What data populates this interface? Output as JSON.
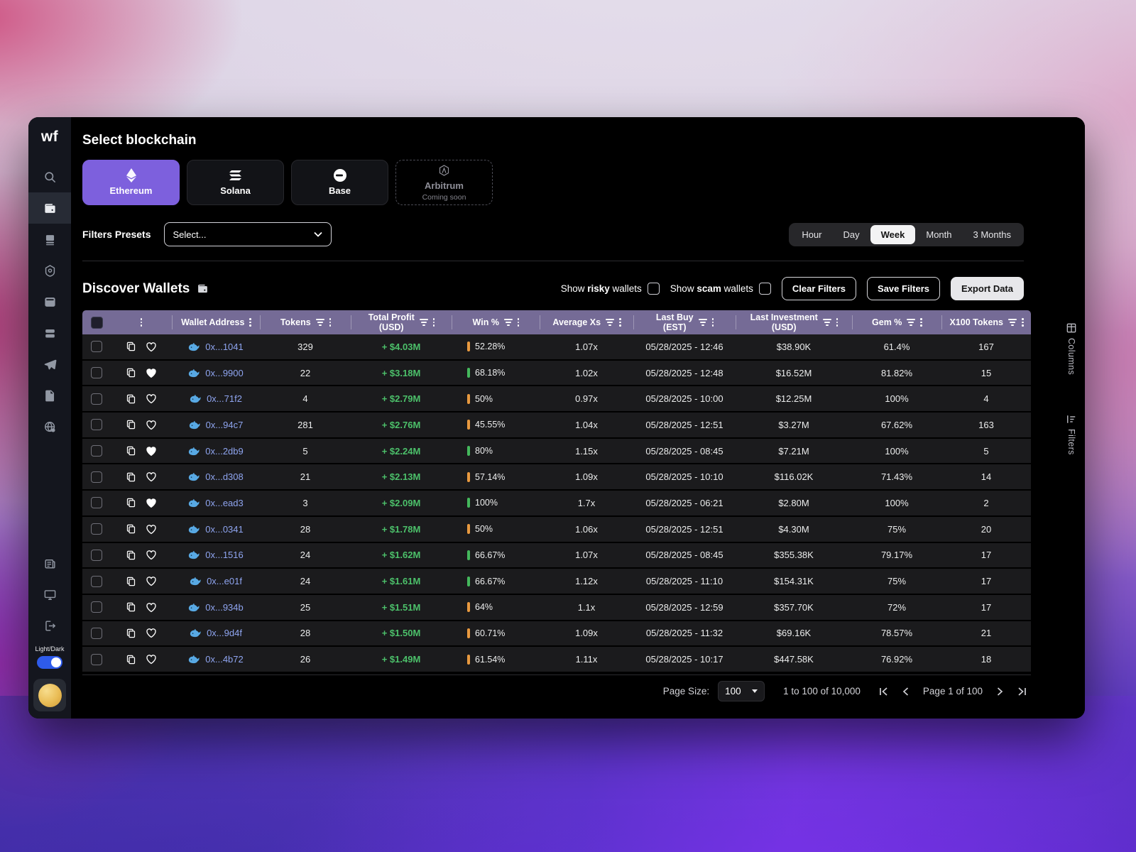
{
  "sidebar": {
    "logo": "wf",
    "theme_toggle_label": "Light/Dark",
    "items_top": [
      "search",
      "wallets",
      "portfolio",
      "security",
      "cards",
      "lists",
      "telegram",
      "documents",
      "web"
    ],
    "items_bottom": [
      "news",
      "desktop",
      "logout"
    ]
  },
  "blockchain": {
    "title": "Select blockchain",
    "options": [
      {
        "label": "Ethereum",
        "selected": true
      },
      {
        "label": "Solana",
        "selected": false
      },
      {
        "label": "Base",
        "selected": false
      },
      {
        "label": "Arbitrum",
        "sublabel": "Coming soon",
        "selected": false,
        "disabled": true
      }
    ]
  },
  "filters_presets": {
    "label": "Filters Presets",
    "placeholder": "Select..."
  },
  "time_range": {
    "options": [
      "Hour",
      "Day",
      "Week",
      "Month",
      "3 Months"
    ],
    "selected": "Week"
  },
  "discover": {
    "title": "Discover Wallets",
    "toggles": [
      {
        "prefix": "Show ",
        "bold": "risky",
        "suffix": " wallets",
        "checked": false
      },
      {
        "prefix": "Show ",
        "bold": "scam",
        "suffix": " wallets",
        "checked": false
      }
    ],
    "buttons": {
      "clear": "Clear Filters",
      "save": "Save Filters",
      "export": "Export Data"
    }
  },
  "table": {
    "columns": [
      {
        "type": "checkbox"
      },
      {
        "type": "actions",
        "dots": true
      },
      {
        "label": "Wallet Address",
        "dots": true
      },
      {
        "label": "Tokens",
        "filter": true,
        "dots": true
      },
      {
        "label": "Total Profit",
        "label2": "(USD)",
        "filter": true,
        "dots": true
      },
      {
        "label": "Win %",
        "filter": true,
        "dots": true
      },
      {
        "label": "Average Xs",
        "filter": true,
        "dots": true
      },
      {
        "label": "Last Buy",
        "label2": "(EST)",
        "filter": true,
        "dots": true
      },
      {
        "label": "Last Investment",
        "label2": "(USD)",
        "filter": true,
        "dots": true
      },
      {
        "label": "Gem %",
        "filter": true,
        "dots": true
      },
      {
        "label": "X100 Tokens",
        "filter": true,
        "dots": true
      }
    ],
    "rows": [
      {
        "address": "0x...1041",
        "favorite": false,
        "tokens": "329",
        "profit": "+ $4.03M",
        "win": "52.28%",
        "win_color": "orange",
        "avg_xs": "1.07x",
        "last_buy": "05/28/2025 - 12:46",
        "last_investment": "$38.90K",
        "gem": "61.4%",
        "x100": "167"
      },
      {
        "address": "0x...9900",
        "favorite": true,
        "tokens": "22",
        "profit": "+ $3.18M",
        "win": "68.18%",
        "win_color": "green",
        "avg_xs": "1.02x",
        "last_buy": "05/28/2025 - 12:48",
        "last_investment": "$16.52M",
        "gem": "81.82%",
        "x100": "15"
      },
      {
        "address": "0x...71f2",
        "favorite": false,
        "tokens": "4",
        "profit": "+ $2.79M",
        "win": "50%",
        "win_color": "orange",
        "avg_xs": "0.97x",
        "last_buy": "05/28/2025 - 10:00",
        "last_investment": "$12.25M",
        "gem": "100%",
        "x100": "4"
      },
      {
        "address": "0x...94c7",
        "favorite": false,
        "tokens": "281",
        "profit": "+ $2.76M",
        "win": "45.55%",
        "win_color": "orange",
        "avg_xs": "1.04x",
        "last_buy": "05/28/2025 - 12:51",
        "last_investment": "$3.27M",
        "gem": "67.62%",
        "x100": "163"
      },
      {
        "address": "0x...2db9",
        "favorite": true,
        "tokens": "5",
        "profit": "+ $2.24M",
        "win": "80%",
        "win_color": "green",
        "avg_xs": "1.15x",
        "last_buy": "05/28/2025 - 08:45",
        "last_investment": "$7.21M",
        "gem": "100%",
        "x100": "5"
      },
      {
        "address": "0x...d308",
        "favorite": false,
        "tokens": "21",
        "profit": "+ $2.13M",
        "win": "57.14%",
        "win_color": "orange",
        "avg_xs": "1.09x",
        "last_buy": "05/28/2025 - 10:10",
        "last_investment": "$116.02K",
        "gem": "71.43%",
        "x100": "14"
      },
      {
        "address": "0x...ead3",
        "favorite": true,
        "tokens": "3",
        "profit": "+ $2.09M",
        "win": "100%",
        "win_color": "green",
        "avg_xs": "1.7x",
        "last_buy": "05/28/2025 - 06:21",
        "last_investment": "$2.80M",
        "gem": "100%",
        "x100": "2"
      },
      {
        "address": "0x...0341",
        "favorite": false,
        "tokens": "28",
        "profit": "+ $1.78M",
        "win": "50%",
        "win_color": "orange",
        "avg_xs": "1.06x",
        "last_buy": "05/28/2025 - 12:51",
        "last_investment": "$4.30M",
        "gem": "75%",
        "x100": "20"
      },
      {
        "address": "0x...1516",
        "favorite": false,
        "tokens": "24",
        "profit": "+ $1.62M",
        "win": "66.67%",
        "win_color": "green",
        "avg_xs": "1.07x",
        "last_buy": "05/28/2025 - 08:45",
        "last_investment": "$355.38K",
        "gem": "79.17%",
        "x100": "17"
      },
      {
        "address": "0x...e01f",
        "favorite": false,
        "tokens": "24",
        "profit": "+ $1.61M",
        "win": "66.67%",
        "win_color": "green",
        "avg_xs": "1.12x",
        "last_buy": "05/28/2025 - 11:10",
        "last_investment": "$154.31K",
        "gem": "75%",
        "x100": "17"
      },
      {
        "address": "0x...934b",
        "favorite": false,
        "tokens": "25",
        "profit": "+ $1.51M",
        "win": "64%",
        "win_color": "orange",
        "avg_xs": "1.1x",
        "last_buy": "05/28/2025 - 12:59",
        "last_investment": "$357.70K",
        "gem": "72%",
        "x100": "17"
      },
      {
        "address": "0x...9d4f",
        "favorite": false,
        "tokens": "28",
        "profit": "+ $1.50M",
        "win": "60.71%",
        "win_color": "orange",
        "avg_xs": "1.09x",
        "last_buy": "05/28/2025 - 11:32",
        "last_investment": "$69.16K",
        "gem": "78.57%",
        "x100": "21"
      },
      {
        "address": "0x...4b72",
        "favorite": false,
        "tokens": "26",
        "profit": "+ $1.49M",
        "win": "61.54%",
        "win_color": "orange",
        "avg_xs": "1.11x",
        "last_buy": "05/28/2025 - 10:17",
        "last_investment": "$447.58K",
        "gem": "76.92%",
        "x100": "18"
      }
    ]
  },
  "side_tabs": [
    {
      "label": "Columns"
    },
    {
      "label": "Filters"
    }
  ],
  "pagination": {
    "page_size_label": "Page Size:",
    "page_size": "100",
    "range": "1 to 100 of 10,000",
    "page": "Page 1 of 100"
  },
  "colors": {
    "accent": "#7d60dd",
    "table_header": "#756b96",
    "profit_green": "#4cc06a",
    "win_green": "#44b85c",
    "win_orange": "#e8993f",
    "link_blue": "#8fa5f0",
    "toggle_blue": "#2e5beb"
  }
}
